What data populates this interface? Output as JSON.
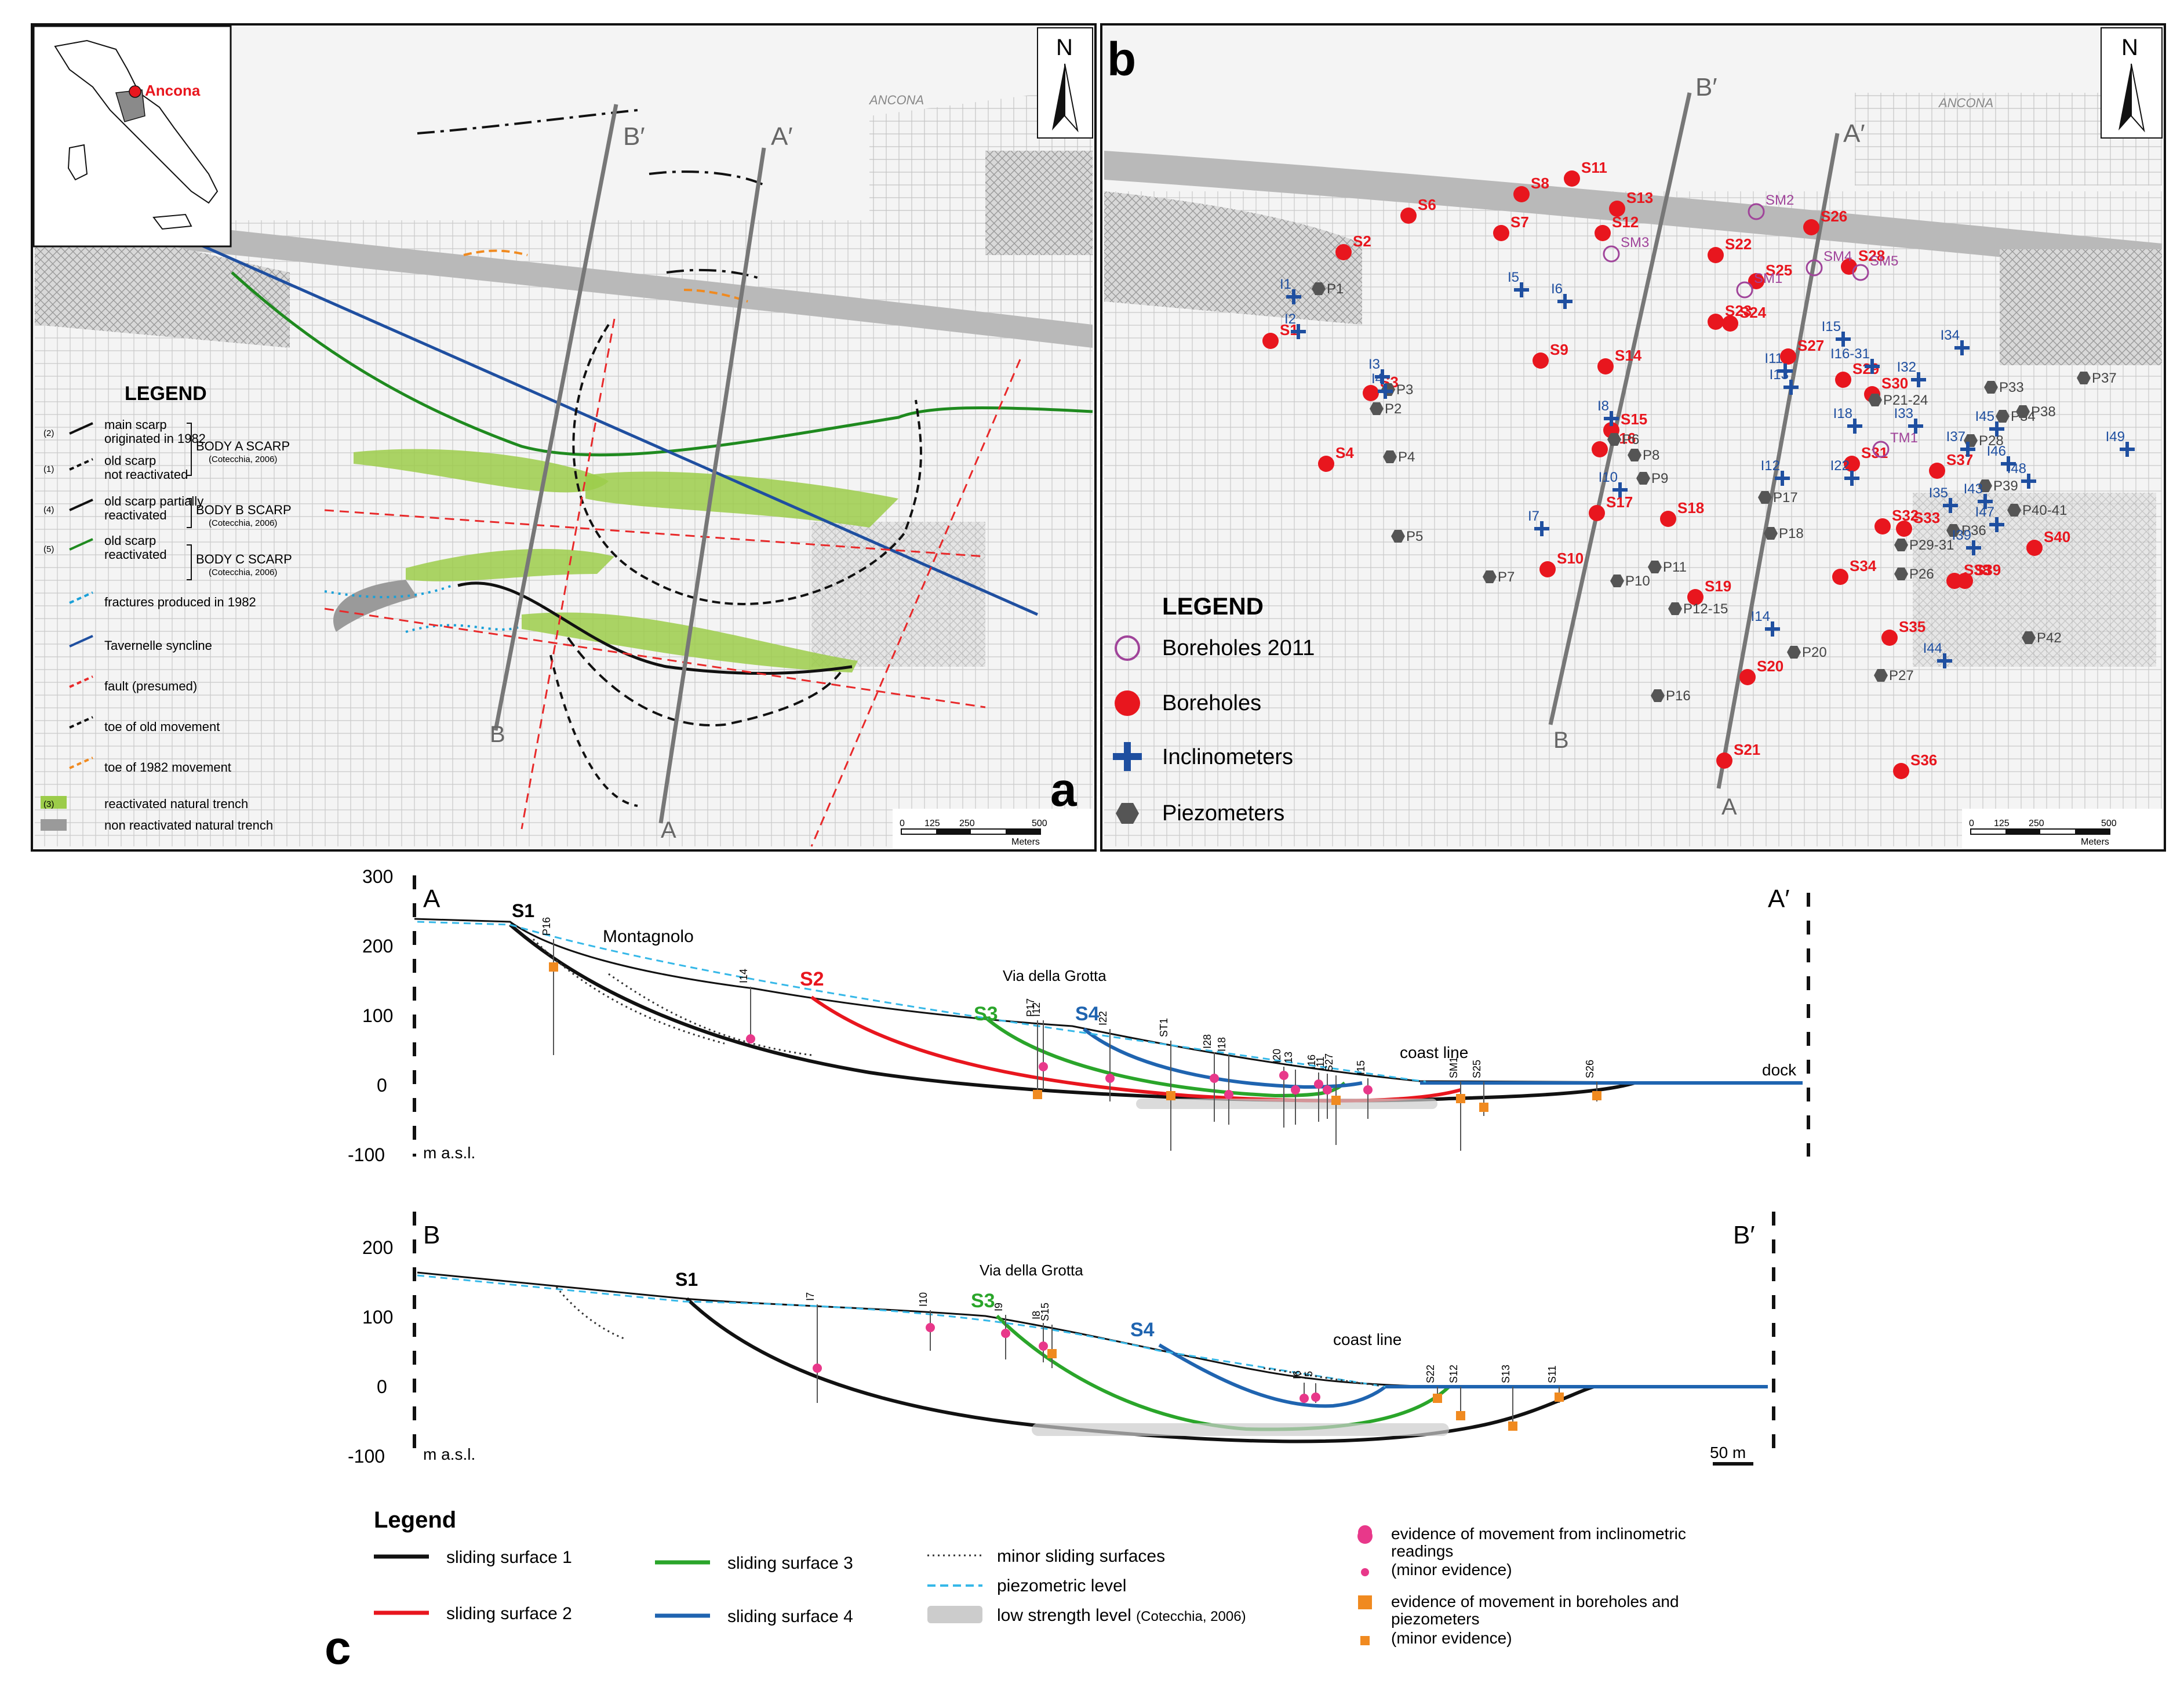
{
  "panel_a": {
    "label": "a",
    "north": "N",
    "inset_city": "Ancona",
    "map_town": "ANCONA",
    "section_labels": {
      "b_top": "B′",
      "b_bottom": "B",
      "a_top": "A′",
      "a_bottom": "A"
    },
    "legend": {
      "title": "LEGEND",
      "items": [
        {
          "num": "(2)",
          "text1": "main scarp",
          "text2": "originated in 1982",
          "color": "#111111"
        },
        {
          "num": "(1)",
          "text1": "old scarp",
          "text2": "not reactivated",
          "color": "#111111"
        },
        {
          "num": "(4)",
          "text1": "old scarp partially",
          "text2": "reactivated",
          "color": "#111111"
        },
        {
          "num": "(5)",
          "text1": "old scarp",
          "text2": "reactivated",
          "color": "#1f8a1f"
        },
        {
          "num": "",
          "text1": "fractures produced in 1982",
          "text2": "",
          "color": "#1aa0d8"
        },
        {
          "num": "",
          "text1": "Tavernelle syncline",
          "text2": "",
          "color": "#1f4fa0"
        },
        {
          "num": "",
          "text1": "fault (presumed)",
          "text2": "",
          "color": "#e8292a"
        },
        {
          "num": "",
          "text1": "toe of old movement",
          "text2": "",
          "color": "#111111"
        },
        {
          "num": "",
          "text1": "toe of 1982 movement",
          "text2": "",
          "color": "#f08a20"
        },
        {
          "num": "(3)",
          "text1": "reactivated natural trench",
          "text2": "",
          "color": "#9ccc4a"
        },
        {
          "num": "",
          "text1": "non reactivated natural trench",
          "text2": "",
          "color": "#9a9a9a"
        }
      ],
      "brackets": [
        {
          "text": "BODY A SCARP",
          "ref": "(Cotecchia, 2006)"
        },
        {
          "text": "BODY B SCARP",
          "ref": "(Cotecchia, 2006)"
        },
        {
          "text": "BODY C SCARP",
          "ref": "(Cotecchia, 2006)"
        }
      ]
    },
    "scale": {
      "ticks": [
        "0",
        "125",
        "250",
        "500"
      ],
      "unit": "Meters"
    }
  },
  "panel_b": {
    "label": "b",
    "north": "N",
    "map_town": "ANCONA",
    "section_labels": {
      "b_top": "B′",
      "b_bottom": "B",
      "a_top": "A′",
      "a_bottom": "A"
    },
    "legend": {
      "title": "LEGEND",
      "items": [
        {
          "text": "Boreholes 2011",
          "symbol": "open-circle",
          "color": "#a0449a"
        },
        {
          "text": "Boreholes",
          "symbol": "red-dot",
          "color": "#e8161e"
        },
        {
          "text": "Inclinometers",
          "symbol": "blue-cross",
          "color": "#1f4fa0"
        },
        {
          "text": "Piezometers",
          "symbol": "hexagon",
          "color": "#555555"
        }
      ]
    },
    "boreholes": [
      "S1",
      "S2",
      "S3",
      "S4",
      "S6",
      "S7",
      "S8",
      "S9",
      "S10",
      "S11",
      "S12",
      "S13",
      "S14",
      "S15",
      "S16",
      "S17",
      "S18",
      "S19",
      "S20",
      "S21",
      "S22",
      "S23",
      "S24",
      "S25",
      "S26",
      "S27",
      "S28",
      "S29",
      "S30",
      "S31",
      "S32",
      "S33",
      "S34",
      "S35",
      "S36",
      "S37",
      "S38",
      "S39",
      "S40"
    ],
    "boreholes_2011": [
      "SM1",
      "SM2",
      "SM3",
      "SM4",
      "SM5",
      "TM1"
    ],
    "inclinometers": [
      "I1",
      "I2",
      "I3",
      "I4",
      "I5",
      "I6",
      "I7",
      "I8",
      "I10",
      "I11",
      "I12",
      "I13",
      "I14",
      "I15",
      "I16-31",
      "I18",
      "I22",
      "I32",
      "I33",
      "I34",
      "I35",
      "I37",
      "I39",
      "I43",
      "I44",
      "I45",
      "I46",
      "I47",
      "I48",
      "I49"
    ],
    "piezometers": [
      "P1",
      "P2",
      "P3",
      "P4",
      "P5",
      "P6",
      "P7",
      "P8",
      "P9",
      "P10",
      "P11",
      "P12-15",
      "P16",
      "P17",
      "P18",
      "P20",
      "P21-24",
      "P26",
      "P27",
      "P28",
      "P29-31",
      "P33",
      "P34",
      "P36",
      "P37",
      "P38",
      "P39",
      "P40-41",
      "P42"
    ],
    "scale": {
      "ticks": [
        "0",
        "125",
        "250",
        "500"
      ],
      "unit": "Meters"
    }
  },
  "panel_c": {
    "label": "c",
    "section_aa": {
      "left": "A",
      "right": "A′",
      "unit": "m a.s.l.",
      "yticks": [
        "300",
        "200",
        "100",
        "0",
        "-100"
      ],
      "surfaces": [
        "S1",
        "S2",
        "S3",
        "S4"
      ],
      "place_1": "Montagnolo",
      "place_2": "Via della Grotta",
      "coast": "coast line",
      "dock": "dock",
      "instruments": [
        "P16",
        "I14",
        "P17",
        "I12",
        "I22",
        "ST1",
        "I28",
        "I18",
        "I20",
        "I13",
        "I16",
        "I11",
        "S27",
        "I15",
        "SM1",
        "S25",
        "S26"
      ]
    },
    "section_bb": {
      "left": "B",
      "right": "B′",
      "unit": "m a.s.l.",
      "yticks": [
        "200",
        "100",
        "0",
        "-100"
      ],
      "surfaces": [
        "S1",
        "S3",
        "S4"
      ],
      "place_2": "Via della Grotta",
      "coast": "coast line",
      "instruments": [
        "I7",
        "I10",
        "I9",
        "I8",
        "S15",
        "I6",
        "I5",
        "S22",
        "S12",
        "S13",
        "S11"
      ],
      "scalebar": "50 m"
    },
    "legend": {
      "title": "Legend",
      "items": [
        {
          "text": "sliding surface 1",
          "color": "#111111",
          "style": "solid"
        },
        {
          "text": "sliding surface 2",
          "color": "#e8161e",
          "style": "solid"
        },
        {
          "text": "sliding surface 3",
          "color": "#2aa52a",
          "style": "solid"
        },
        {
          "text": "sliding surface 4",
          "color": "#1f64b0",
          "style": "solid"
        },
        {
          "text": "minor sliding surfaces",
          "color": "#333333",
          "style": "dotted"
        },
        {
          "text": "piezometric level",
          "color": "#36b8e8",
          "style": "dashed"
        },
        {
          "text": "low strength level",
          "ref": "(Cotecchia, 2006)",
          "color": "#cccccc",
          "style": "band"
        }
      ],
      "evidence": {
        "incl_line1": "evidence of movement from inclinometric",
        "incl_line2": "readings",
        "incl_minor": "(minor evidence)",
        "bore_line1": "evidence of movement in boreholes and",
        "bore_line2": "piezometers",
        "bore_minor": "(minor evidence)",
        "incl_color": "#e8388a",
        "bore_color": "#f08a20"
      }
    }
  }
}
